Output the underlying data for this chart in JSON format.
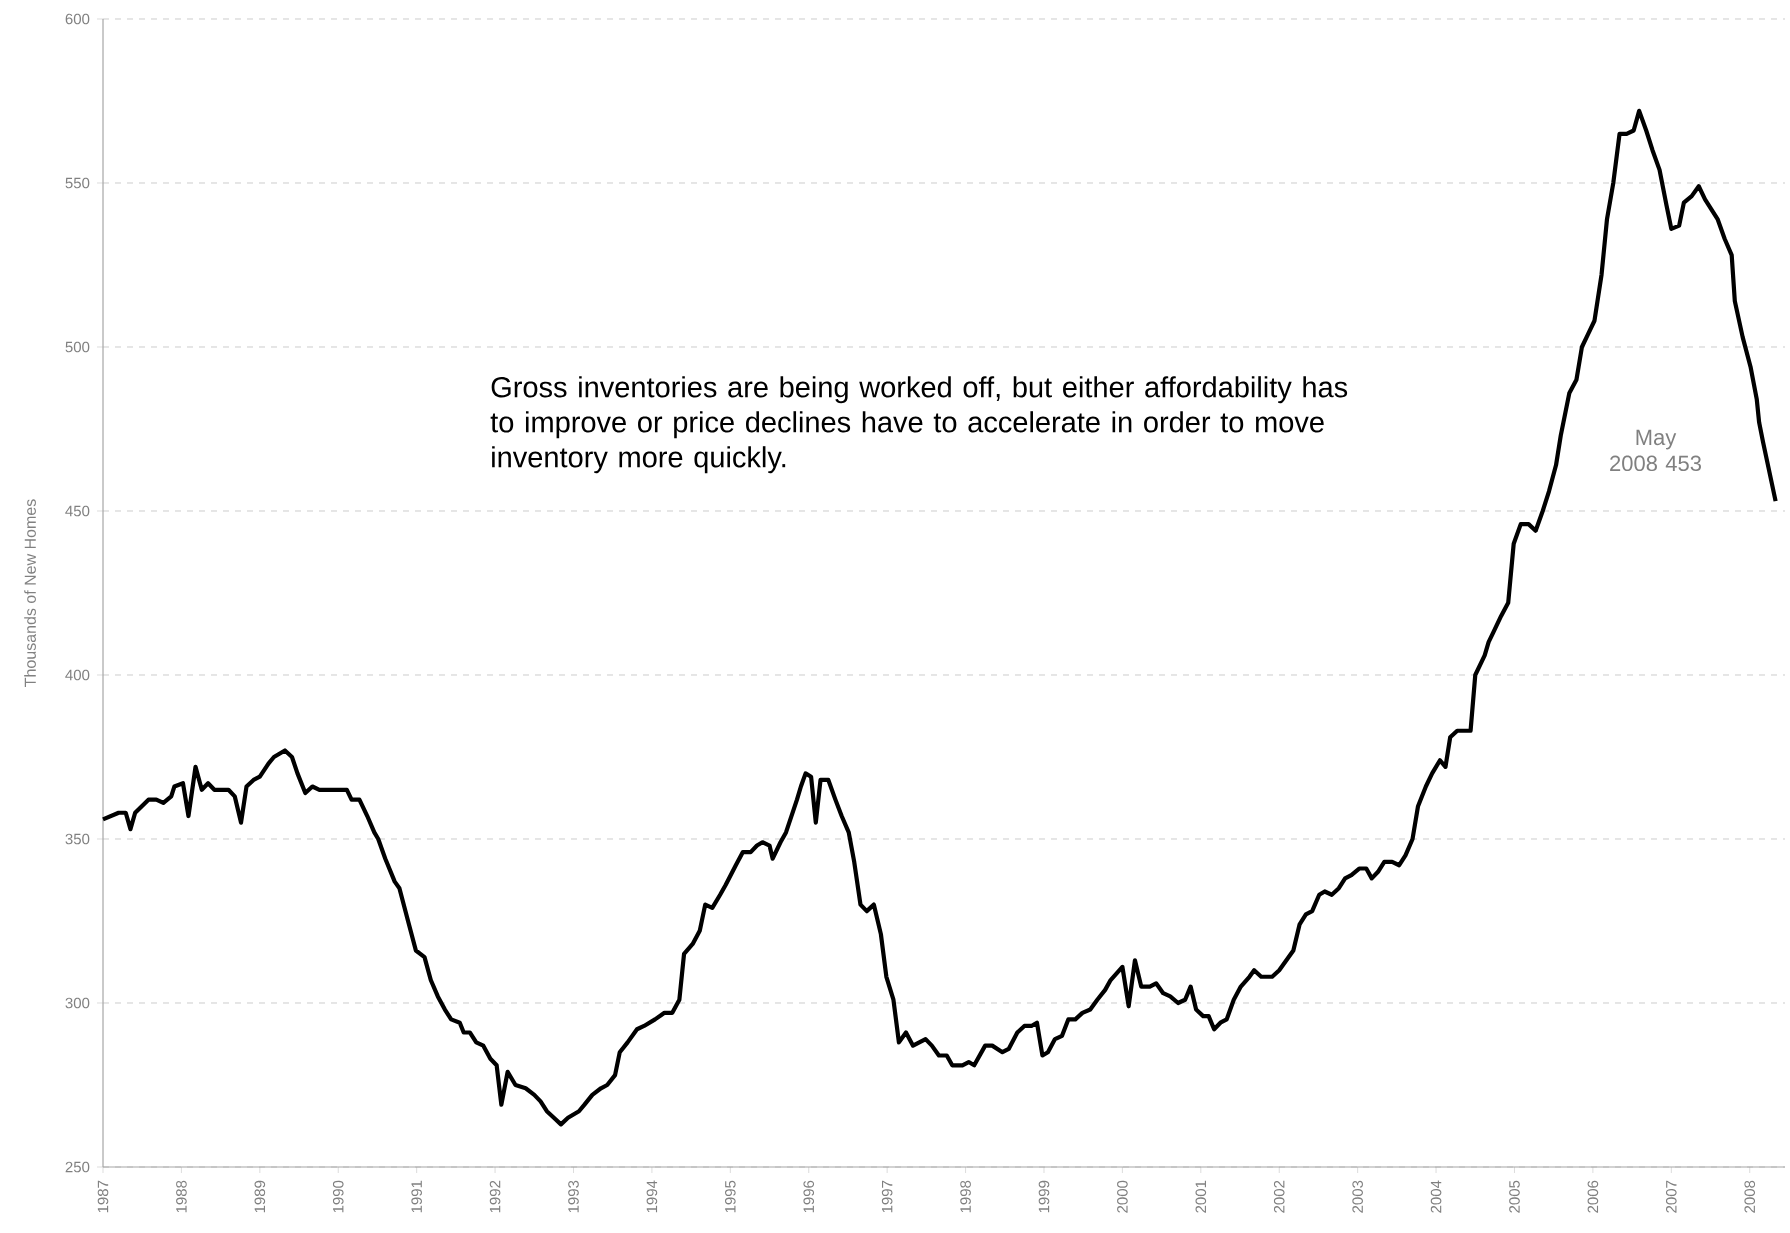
{
  "chart_data": {
    "type": "line",
    "ylabel": "Thousands of New Homes",
    "xlim": [
      1987,
      2008.45
    ],
    "ylim": [
      250,
      600
    ],
    "xticks": [
      1987,
      1988,
      1989,
      1990,
      1991,
      1992,
      1993,
      1994,
      1995,
      1996,
      1997,
      1998,
      1999,
      2000,
      2001,
      2002,
      2003,
      2004,
      2005,
      2006,
      2007,
      2008
    ],
    "yticks": [
      250,
      300,
      350,
      400,
      450,
      500,
      550,
      600
    ],
    "grid": "y",
    "line_style": "solid",
    "annotations": [
      "Gross inventories are being worked off, but either affordability has to improve or price declines have to accelerate in order to move inventory more quickly.",
      "May 2008 453"
    ],
    "series": [
      {
        "color": "#000000",
        "x": [
          1987.0,
          1987.2,
          1987.29,
          1987.35,
          1987.41,
          1987.58,
          1987.68,
          1987.77,
          1987.87,
          1987.91,
          1988.02,
          1988.09,
          1988.18,
          1988.26,
          1988.34,
          1988.42,
          1988.6,
          1988.68,
          1988.76,
          1988.83,
          1988.92,
          1989.0,
          1989.11,
          1989.18,
          1989.32,
          1989.41,
          1989.48,
          1989.58,
          1989.67,
          1989.76,
          1990.11,
          1990.17,
          1990.27,
          1990.37,
          1990.46,
          1990.51,
          1990.6,
          1990.72,
          1990.78,
          1990.89,
          1990.99,
          1991.1,
          1991.18,
          1991.27,
          1991.36,
          1991.44,
          1991.55,
          1991.6,
          1991.68,
          1991.76,
          1991.85,
          1991.94,
          1992.02,
          1992.08,
          1992.16,
          1992.26,
          1992.39,
          1992.5,
          1992.58,
          1992.66,
          1992.75,
          1992.84,
          1992.93,
          1993.07,
          1993.14,
          1993.24,
          1993.35,
          1993.43,
          1993.53,
          1993.59,
          1993.69,
          1993.81,
          1993.9,
          1994.04,
          1994.16,
          1994.26,
          1994.35,
          1994.41,
          1994.52,
          1994.61,
          1994.68,
          1994.77,
          1994.87,
          1994.94,
          1995.07,
          1995.16,
          1995.26,
          1995.34,
          1995.41,
          1995.5,
          1995.54,
          1995.64,
          1995.71,
          1995.85,
          1995.9,
          1995.96,
          1996.03,
          1996.09,
          1996.15,
          1996.25,
          1996.34,
          1996.42,
          1996.51,
          1996.58,
          1996.66,
          1996.74,
          1996.83,
          1996.92,
          1996.99,
          1997.08,
          1997.15,
          1997.24,
          1997.33,
          1997.49,
          1997.57,
          1997.66,
          1997.76,
          1997.83,
          1997.96,
          1998.04,
          1998.11,
          1998.25,
          1998.34,
          1998.47,
          1998.55,
          1998.66,
          1998.75,
          1998.84,
          1998.91,
          1998.98,
          1999.05,
          1999.14,
          1999.23,
          1999.31,
          1999.4,
          1999.49,
          1999.59,
          1999.68,
          1999.78,
          1999.85,
          2000.0,
          2000.08,
          2000.16,
          2000.24,
          2000.35,
          2000.43,
          2000.52,
          2000.61,
          2000.71,
          2000.8,
          2000.87,
          2000.94,
          2001.03,
          2001.1,
          2001.17,
          2001.25,
          2001.33,
          2001.42,
          2001.51,
          2001.62,
          2001.68,
          2001.77,
          2001.91,
          2002.0,
          2002.09,
          2002.18,
          2002.26,
          2002.34,
          2002.42,
          2002.51,
          2002.58,
          2002.67,
          2002.76,
          2002.84,
          2002.92,
          2003.02,
          2003.11,
          2003.18,
          2003.26,
          2003.34,
          2003.44,
          2003.53,
          2003.61,
          2003.7,
          2003.77,
          2003.87,
          2003.95,
          2004.05,
          2004.12,
          2004.18,
          2004.27,
          2004.44,
          2004.5,
          2004.62,
          2004.67,
          2004.73,
          2004.83,
          2004.92,
          2004.99,
          2005.08,
          2005.18,
          2005.27,
          2005.36,
          2005.44,
          2005.53,
          2005.59,
          2005.7,
          2005.79,
          2005.86,
          2005.94,
          2006.02,
          2006.11,
          2006.18,
          2006.26,
          2006.34,
          2006.43,
          2006.52,
          2006.59,
          2006.68,
          2006.76,
          2006.85,
          2006.94,
          2007.0,
          2007.1,
          2007.16,
          2007.26,
          2007.35,
          2007.43,
          2007.51,
          2007.59,
          2007.68,
          2007.77,
          2007.81,
          2007.91,
          2008.01,
          2008.09,
          2008.12,
          2008.17,
          2008.25,
          2008.33
        ],
        "values": [
          356,
          358,
          358,
          353,
          358,
          362,
          362,
          361,
          363,
          366,
          367,
          357,
          372,
          365,
          367,
          365,
          365,
          363,
          355,
          366,
          368,
          369,
          373,
          375,
          377,
          375,
          370,
          364,
          366,
          365,
          365,
          362,
          362,
          357,
          352,
          350,
          344,
          337,
          335,
          325,
          316,
          314,
          307,
          302,
          298,
          295,
          294,
          291,
          291,
          288,
          287,
          283,
          281,
          269,
          279,
          275,
          274,
          272,
          270,
          267,
          265,
          263,
          265,
          267,
          269,
          272,
          274,
          275,
          278,
          285,
          288,
          292,
          293,
          295,
          297,
          297,
          301,
          315,
          318,
          322,
          330,
          329,
          333,
          336,
          342,
          346,
          346,
          348,
          349,
          348,
          344,
          349,
          352,
          362,
          366,
          370,
          369,
          355,
          368,
          368,
          362,
          357,
          352,
          343,
          330,
          328,
          330,
          321,
          308,
          301,
          288,
          291,
          287,
          289,
          287,
          284,
          284,
          281,
          281,
          282,
          281,
          287,
          287,
          285,
          286,
          291,
          293,
          293,
          294,
          284,
          285,
          289,
          290,
          295,
          295,
          297,
          298,
          301,
          304,
          307,
          311,
          299,
          313,
          305,
          305,
          306,
          303,
          302,
          300,
          301,
          305,
          298,
          296,
          296,
          292,
          294,
          295,
          301,
          305,
          308,
          310,
          308,
          308,
          310,
          313,
          316,
          324,
          327,
          328,
          333,
          334,
          333,
          335,
          338,
          339,
          341,
          341,
          338,
          340,
          343,
          343,
          342,
          345,
          350,
          360,
          366,
          370,
          374,
          372,
          381,
          383,
          383,
          400,
          406,
          410,
          413,
          418,
          422,
          440,
          446,
          446,
          444,
          450,
          456,
          464,
          473,
          486,
          490,
          500,
          504,
          508,
          522,
          539,
          550,
          565,
          565,
          566,
          572,
          566,
          560,
          554,
          543,
          536,
          537,
          544,
          546,
          549,
          545,
          542,
          539,
          533,
          528,
          514,
          503,
          494,
          484,
          477,
          471,
          462,
          453
        ]
      }
    ]
  }
}
